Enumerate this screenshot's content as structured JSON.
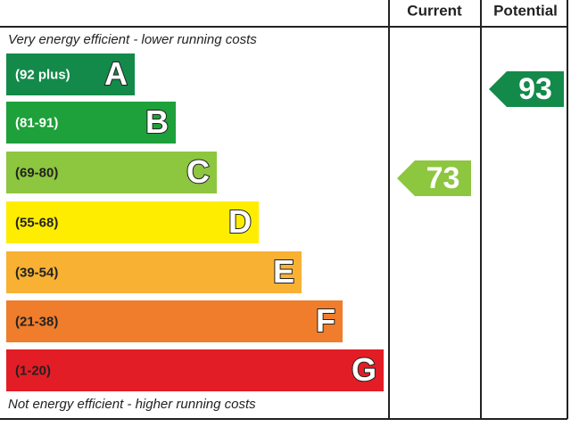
{
  "header": {
    "current": "Current",
    "potential": "Potential"
  },
  "top_note": "Very energy efficient - lower running costs",
  "bottom_note": "Not energy efficient - higher running costs",
  "bands": [
    {
      "range": "(92 plus)",
      "letter": "A",
      "color": "#138a4a"
    },
    {
      "range": "(81-91)",
      "letter": "B",
      "color": "#1ea03b"
    },
    {
      "range": "(69-80)",
      "letter": "C",
      "color": "#8dc63f"
    },
    {
      "range": "(55-68)",
      "letter": "D",
      "color": "#ffed00"
    },
    {
      "range": "(39-54)",
      "letter": "E",
      "color": "#f8b133"
    },
    {
      "range": "(21-38)",
      "letter": "F",
      "color": "#ef7d2b"
    },
    {
      "range": "(1-20)",
      "letter": "G",
      "color": "#e31d25"
    }
  ],
  "current": {
    "rating": "73",
    "color": "#8dc63f"
  },
  "potential": {
    "rating": "93",
    "color": "#138a4a"
  }
}
